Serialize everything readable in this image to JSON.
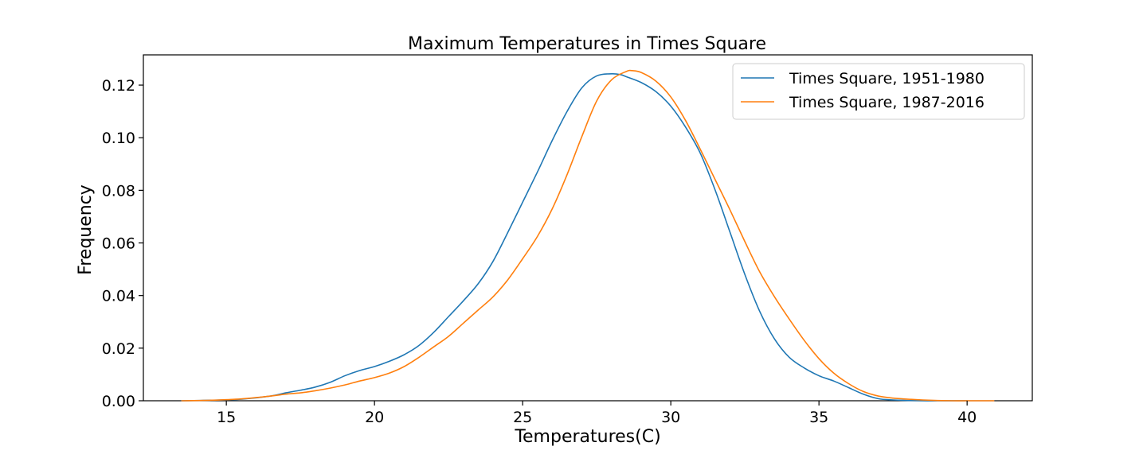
{
  "chart_data": {
    "type": "line",
    "title": "Maximum Temperatures in Times Square",
    "xlabel": "Temperatures(C)",
    "ylabel": "Frequency",
    "xlim": [
      12.2,
      42.2
    ],
    "ylim": [
      0,
      0.1315
    ],
    "xticks": [
      15,
      20,
      25,
      30,
      35,
      40
    ],
    "xtick_labels": [
      "15",
      "20",
      "25",
      "30",
      "35",
      "40"
    ],
    "yticks": [
      0.0,
      0.02,
      0.04,
      0.06,
      0.08,
      0.1,
      0.12
    ],
    "ytick_labels": [
      "0.00",
      "0.02",
      "0.04",
      "0.06",
      "0.08",
      "0.10",
      "0.12"
    ],
    "grid": false,
    "legend_position": "top-right",
    "series": [
      {
        "name": "Times Square, 1951-1980",
        "color": "#1f77b4",
        "x": [
          13.5,
          14.5,
          15.5,
          16.5,
          17.0,
          17.5,
          18.0,
          18.5,
          19.0,
          19.5,
          20.0,
          20.5,
          21.0,
          21.5,
          22.0,
          22.5,
          23.0,
          23.5,
          24.0,
          24.5,
          25.0,
          25.5,
          26.0,
          26.5,
          27.0,
          27.5,
          28.0,
          28.3,
          28.5,
          29.0,
          29.5,
          30.0,
          30.5,
          31.0,
          31.5,
          32.0,
          32.5,
          33.0,
          33.5,
          34.0,
          34.5,
          35.0,
          35.5,
          36.0,
          36.5,
          37.0,
          37.5,
          38.0,
          38.5,
          39.0,
          39.5,
          40.0
        ],
        "y": [
          0.0,
          0.0002,
          0.0006,
          0.0018,
          0.003,
          0.004,
          0.0052,
          0.007,
          0.0095,
          0.0115,
          0.013,
          0.015,
          0.0175,
          0.021,
          0.026,
          0.032,
          0.038,
          0.0445,
          0.053,
          0.064,
          0.0755,
          0.087,
          0.099,
          0.11,
          0.119,
          0.1235,
          0.1243,
          0.124,
          0.1232,
          0.121,
          0.1175,
          0.112,
          0.104,
          0.094,
          0.08,
          0.064,
          0.048,
          0.034,
          0.0235,
          0.0165,
          0.0125,
          0.0095,
          0.0075,
          0.005,
          0.0025,
          0.0008,
          0.0003,
          0.0001,
          0.0,
          0.0,
          0.0,
          0.0
        ]
      },
      {
        "name": "Times Square, 1987-2016",
        "color": "#ff7f0e",
        "x": [
          13.5,
          14.5,
          15.5,
          16.5,
          17.0,
          17.5,
          18.0,
          18.5,
          19.0,
          19.5,
          20.0,
          20.5,
          21.0,
          21.5,
          22.0,
          22.5,
          23.0,
          23.5,
          24.0,
          24.5,
          25.0,
          25.5,
          26.0,
          26.5,
          27.0,
          27.5,
          28.0,
          28.5,
          28.7,
          29.0,
          29.5,
          30.0,
          30.5,
          31.0,
          31.5,
          32.0,
          32.5,
          33.0,
          33.5,
          34.0,
          34.5,
          35.0,
          35.5,
          36.0,
          36.5,
          37.0,
          37.5,
          38.0,
          38.5,
          39.0,
          39.5,
          40.0,
          40.9
        ],
        "y": [
          0.0,
          0.0002,
          0.0007,
          0.0018,
          0.0025,
          0.003,
          0.0038,
          0.0048,
          0.006,
          0.0075,
          0.0088,
          0.0105,
          0.013,
          0.0165,
          0.0205,
          0.0245,
          0.0295,
          0.0345,
          0.0395,
          0.046,
          0.054,
          0.0625,
          0.073,
          0.086,
          0.1005,
          0.114,
          0.122,
          0.1252,
          0.1255,
          0.1248,
          0.1215,
          0.1155,
          0.1065,
          0.0955,
          0.084,
          0.0725,
          0.0605,
          0.049,
          0.0395,
          0.031,
          0.023,
          0.016,
          0.0105,
          0.0065,
          0.0035,
          0.0018,
          0.001,
          0.0006,
          0.0003,
          0.0001,
          0.0,
          0.0,
          0.0
        ]
      }
    ]
  }
}
